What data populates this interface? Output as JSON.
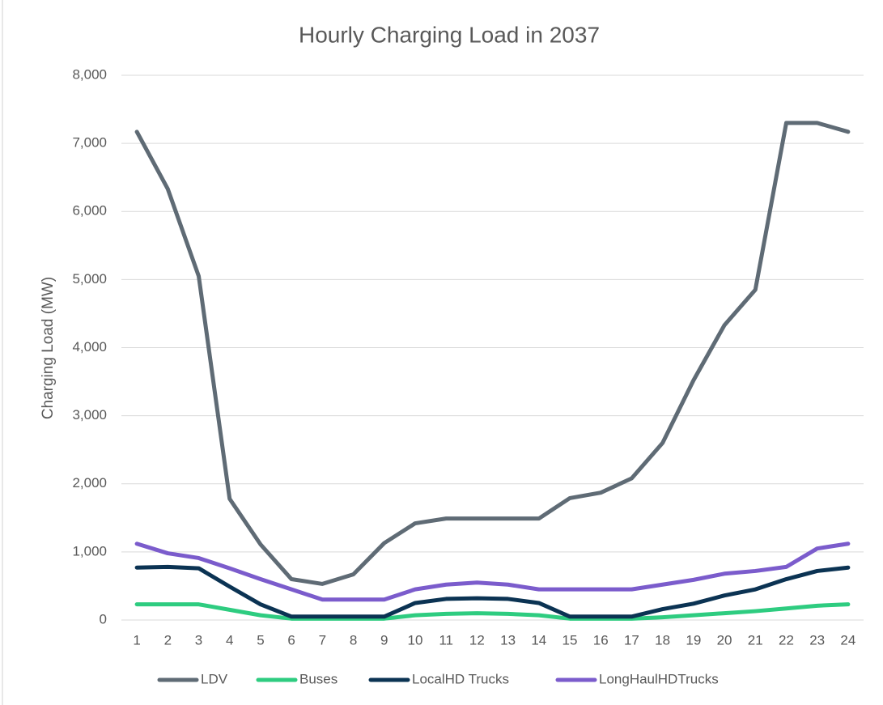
{
  "chart_data": {
    "type": "line",
    "title": "Hourly Charging Load in 2037",
    "y_label": "Charging Load (MW)",
    "categories": [
      "1",
      "2",
      "3",
      "4",
      "5",
      "6",
      "7",
      "8",
      "9",
      "10",
      "11",
      "12",
      "13",
      "14",
      "15",
      "16",
      "17",
      "18",
      "19",
      "20",
      "21",
      "22",
      "23",
      "24"
    ],
    "series": [
      {
        "name": "LDV",
        "color": "#5f6b75",
        "values": [
          7170,
          6330,
          5050,
          1780,
          1110,
          600,
          530,
          670,
          1130,
          1420,
          1490,
          1490,
          1490,
          1490,
          1790,
          1870,
          2080,
          2600,
          3520,
          4330,
          4850,
          7300,
          7300,
          7170
        ]
      },
      {
        "name": "Buses",
        "color": "#2ecc80",
        "values": [
          230,
          230,
          230,
          150,
          70,
          20,
          20,
          20,
          20,
          70,
          90,
          100,
          90,
          70,
          20,
          20,
          20,
          40,
          70,
          100,
          130,
          170,
          210,
          230
        ]
      },
      {
        "name": "LocalHD Trucks",
        "color": "#0b3353",
        "values": [
          770,
          780,
          760,
          490,
          230,
          50,
          50,
          50,
          50,
          250,
          310,
          320,
          310,
          250,
          50,
          50,
          50,
          160,
          240,
          360,
          450,
          600,
          720,
          770
        ]
      },
      {
        "name": "LongHaulHDTrucks",
        "color": "#7b5ccc",
        "values": [
          1120,
          980,
          910,
          760,
          600,
          450,
          300,
          300,
          300,
          450,
          520,
          550,
          520,
          450,
          450,
          450,
          450,
          520,
          590,
          680,
          720,
          780,
          1050,
          1120
        ]
      }
    ],
    "ylim": [
      0,
      8000
    ],
    "yticks": [
      0,
      {
        "value": 1000,
        "label": "1,000"
      },
      {
        "value": 2000,
        "label": "2,000"
      },
      {
        "value": 3000,
        "label": "3,000"
      },
      {
        "value": 4000,
        "label": "4,000"
      },
      {
        "value": 5000,
        "label": "5,000"
      },
      {
        "value": 6000,
        "label": "6,000"
      },
      {
        "value": 7000,
        "label": "7,000"
      },
      {
        "value": 8000,
        "label": "8,000"
      }
    ],
    "grid": true,
    "legend": "bottom"
  }
}
